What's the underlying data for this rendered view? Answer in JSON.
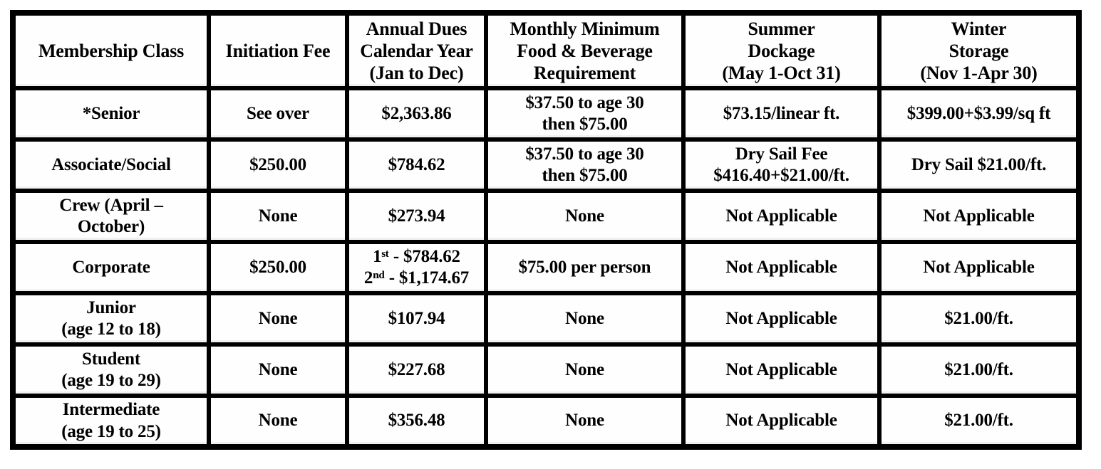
{
  "table": {
    "headers": [
      "Membership Class",
      "Initiation Fee",
      "Annual Dues\nCalendar Year\n(Jan to Dec)",
      "Monthly Minimum\nFood & Beverage\nRequirement",
      "Summer\nDockage\n(May 1-Oct 31)",
      "Winter\nStorage\n(Nov 1-Apr 30)"
    ],
    "rows": [
      {
        "cells": [
          "*Senior",
          "See over",
          "$2,363.86",
          "$37.50 to age 30\nthen $75.00",
          "$73.15/linear ft.",
          "$399.00+$3.99/sq ft"
        ]
      },
      {
        "cells": [
          "Associate/Social",
          "$250.00",
          "$784.62",
          "$37.50 to age 30\nthen $75.00",
          "Dry Sail Fee\n$416.40+$21.00/ft.",
          "Dry Sail $21.00/ft."
        ]
      },
      {
        "cells": [
          "Crew (April –\nOctober)",
          "None",
          "$273.94",
          "None",
          "Not Applicable",
          "Not Applicable"
        ]
      },
      {
        "cells": [
          "Corporate",
          "$250.00",
          "1ˢᵗ - $784.62\n2ⁿᵈ - $1,174.67",
          "$75.00 per person",
          "Not Applicable",
          "Not Applicable"
        ]
      },
      {
        "cells": [
          "Junior\n(age 12 to 18)",
          "None",
          "$107.94",
          "None",
          "Not Applicable",
          "$21.00/ft."
        ]
      },
      {
        "cells": [
          "Student\n(age 19 to 29)",
          "None",
          "$227.68",
          "None",
          "Not Applicable",
          "$21.00/ft."
        ]
      },
      {
        "cells": [
          "Intermediate\n(age 19 to 25)",
          "None",
          "$356.48",
          "None",
          "Not Applicable",
          "$21.00/ft."
        ]
      }
    ],
    "colors": {
      "border": "#000000",
      "text": "#000000",
      "background": "#ffffff"
    }
  }
}
